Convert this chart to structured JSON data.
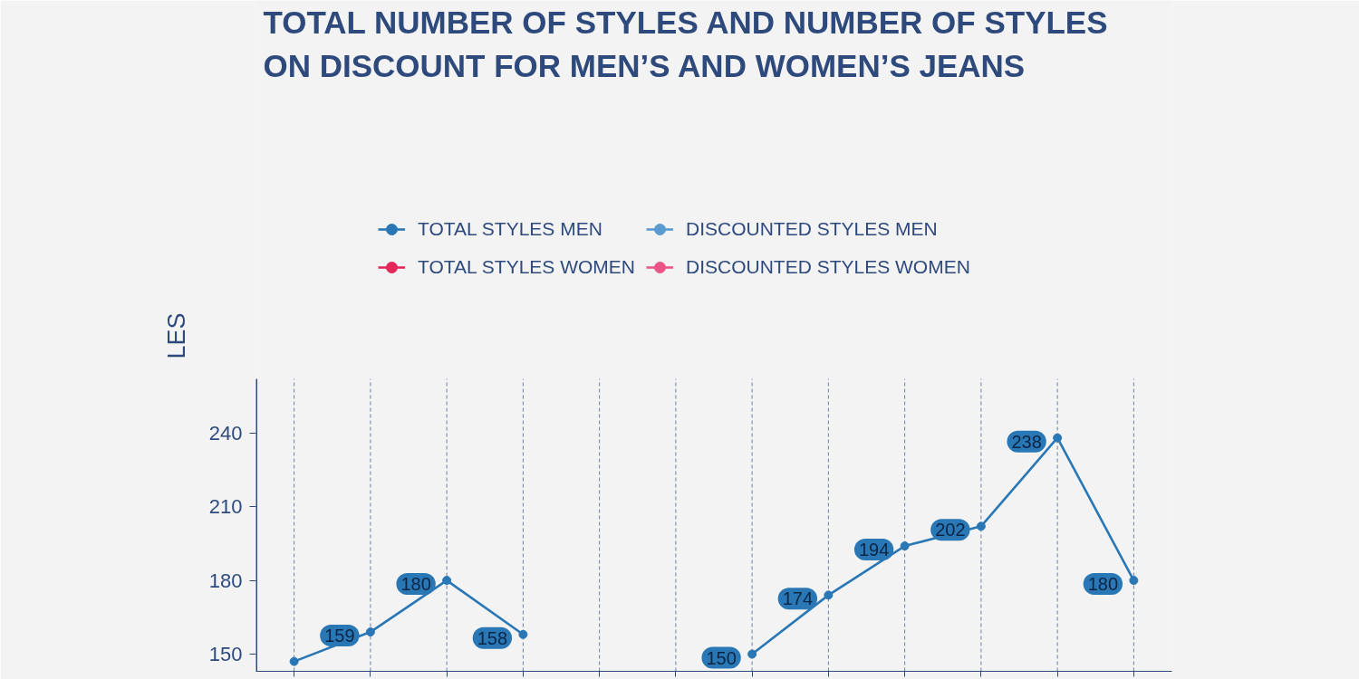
{
  "chart_data": {
    "type": "line",
    "title": "TOTAL NUMBER OF STYLES AND NUMBER OF STYLES ON DISCOUNT FOR MEN’S AND WOMEN’S JEANS",
    "ylabel": "LES",
    "categories": [
      null,
      null,
      null,
      null,
      null,
      null,
      null,
      null,
      null,
      null,
      null,
      null
    ],
    "series": [
      {
        "name": "TOTAL STYLES MEN",
        "color": "#2a77b5",
        "values": [
          147,
          159,
          180,
          158,
          null,
          null,
          150,
          174,
          194,
          202,
          238,
          180
        ],
        "value_labels": [
          null,
          "159",
          "180",
          "158",
          null,
          null,
          "150",
          "174",
          "194",
          "202",
          "238",
          "180"
        ]
      },
      {
        "name": "DISCOUNTED STYLES MEN",
        "color": "#5b9bd0",
        "values": [
          null,
          null,
          null,
          null,
          null,
          null,
          null,
          null,
          null,
          null,
          null,
          null
        ]
      },
      {
        "name": "TOTAL STYLES WOMEN",
        "color": "#e3275a",
        "values": [
          null,
          null,
          null,
          null,
          null,
          null,
          null,
          null,
          null,
          null,
          null,
          null
        ]
      },
      {
        "name": "DISCOUNTED STYLES WOMEN",
        "color": "#ea5585",
        "values": [
          null,
          null,
          null,
          null,
          null,
          null,
          null,
          null,
          null,
          null,
          null,
          null
        ]
      }
    ],
    "ylim": [
      143,
      262
    ],
    "yticks": [
      150,
      180,
      210,
      240
    ],
    "grid": "x",
    "legend": "top",
    "tick_labels": "y",
    "marker": "circle",
    "line_style": "solid"
  }
}
